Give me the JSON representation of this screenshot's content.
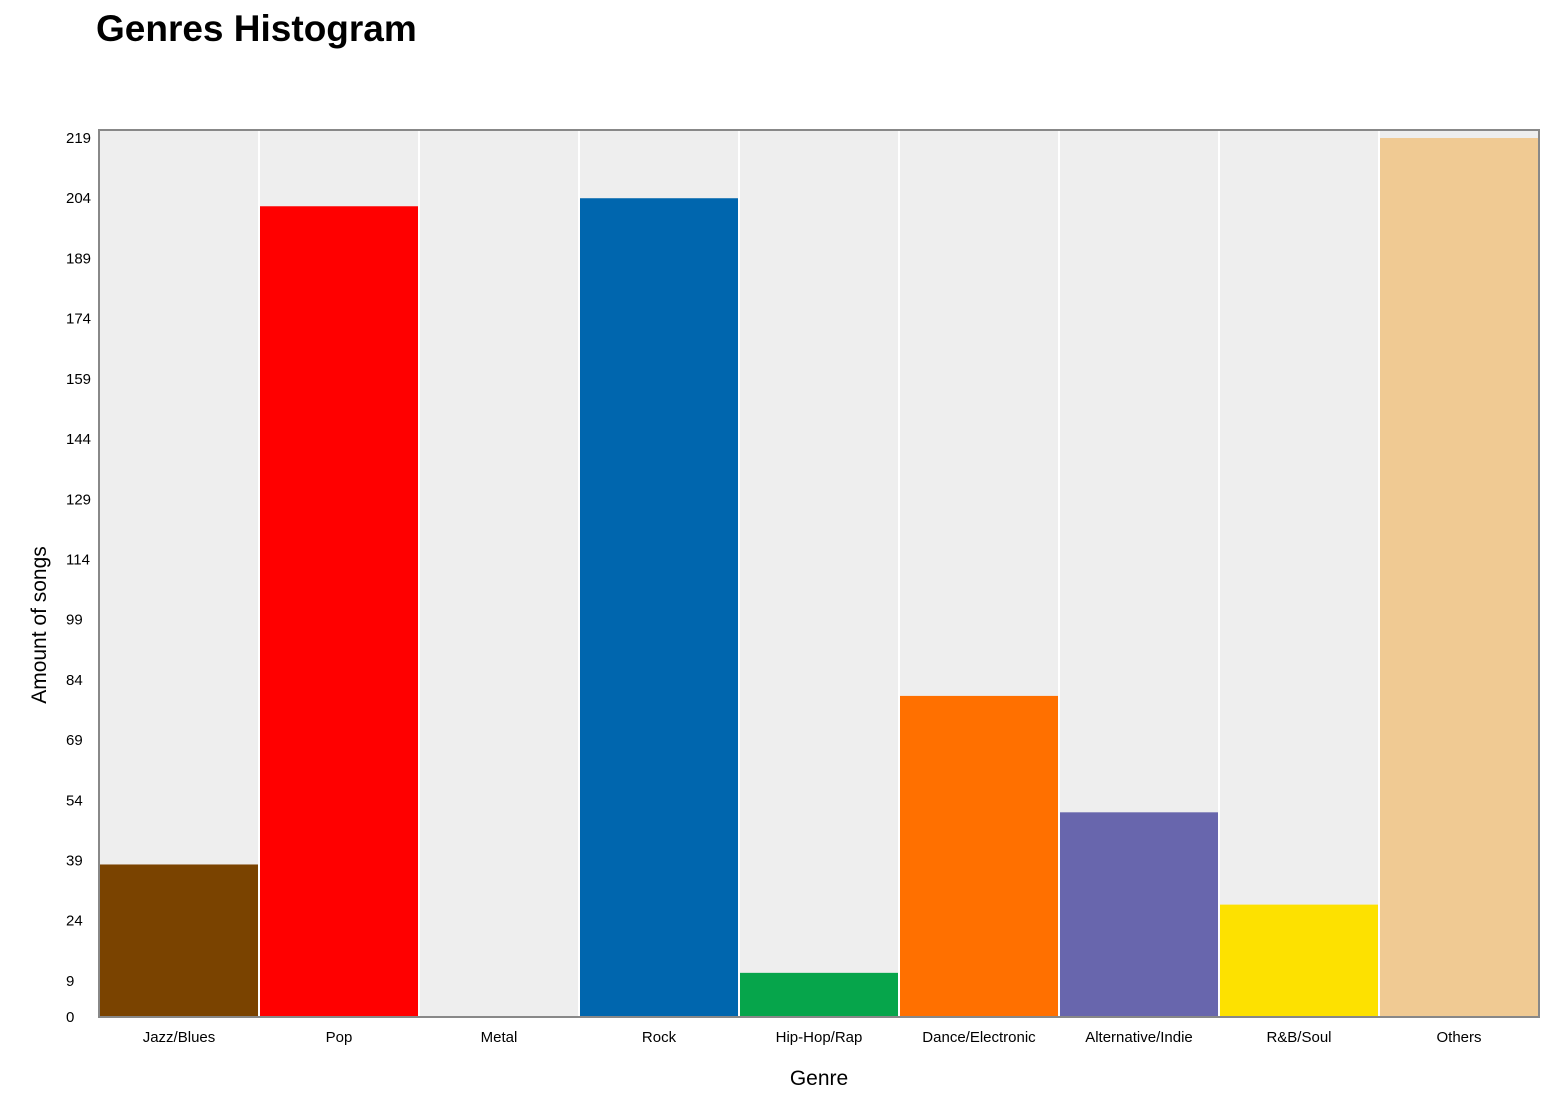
{
  "chart_data": {
    "type": "bar",
    "title": "Genres Histogram",
    "xlabel": "Genre",
    "ylabel": "Amount of songs",
    "categories": [
      "Jazz/Blues",
      "Pop",
      "Metal",
      "Rock",
      "Hip-Hop/Rap",
      "Dance/Electronic",
      "Alternative/Indie",
      "R&B/Soul",
      "Others"
    ],
    "values": [
      38,
      202,
      0,
      204,
      11,
      80,
      51,
      28,
      219
    ],
    "colors": [
      "#7a4300",
      "#ff0000",
      "#eeeeee",
      "#0066ae",
      "#06a54b",
      "#ff7000",
      "#6866ad",
      "#fde100",
      "#f0ca93"
    ],
    "yticks": [
      0,
      9,
      24,
      39,
      54,
      69,
      84,
      99,
      114,
      129,
      144,
      159,
      174,
      189,
      204,
      219
    ],
    "ylim": [
      0,
      221
    ],
    "grid": "vertical",
    "legend": "none",
    "plot_background": "#eeeeee",
    "frame_color": "#888888"
  }
}
